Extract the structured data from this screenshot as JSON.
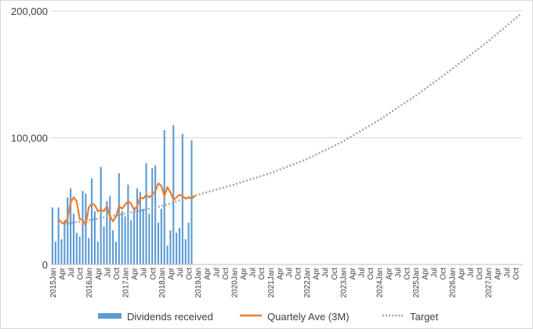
{
  "chart_data": {
    "type": "bar",
    "title": "",
    "xlabel": "",
    "ylabel": "",
    "ylim": [
      0,
      200000
    ],
    "yticks": [
      0,
      100000,
      200000
    ],
    "ytick_labels": [
      "0",
      "100,000",
      "200,000"
    ],
    "grid": true,
    "legend_position": "bottom",
    "x_start": "2015-01",
    "x_end": "2027-12",
    "x_tick_labels": [
      "2015Jan",
      "Apr",
      "Jul",
      "Oct",
      "2016Jan",
      "Apr",
      "Jul",
      "Oct",
      "2017Jan",
      "Apr",
      "Jul",
      "Oct",
      "2018Jan",
      "Apr",
      "Jul",
      "Oct",
      "2019Jan",
      "Apr",
      "Jul",
      "Oct",
      "2020Jan",
      "Apr",
      "Jul",
      "Oct",
      "2021Jan",
      "Apr",
      "Jul",
      "Oct",
      "2022Jan",
      "Apr",
      "Jul",
      "Oct",
      "2023Jan",
      "Apr",
      "Jul",
      "Oct",
      "2024Jan",
      "Apr",
      "Jul",
      "Oct",
      "2025Jan",
      "Apr",
      "Jul",
      "Oct",
      "2026Jan",
      "Apr",
      "Jul",
      "Oct",
      "2027Jan",
      "Apr",
      "Jul",
      "Oct"
    ],
    "series": [
      {
        "name": "Dividends received",
        "kind": "bar",
        "color": "#5b9bd5",
        "x": [
          "2015-01",
          "2015-02",
          "2015-03",
          "2015-04",
          "2015-05",
          "2015-06",
          "2015-07",
          "2015-08",
          "2015-09",
          "2015-10",
          "2015-11",
          "2015-12",
          "2016-01",
          "2016-02",
          "2016-03",
          "2016-04",
          "2016-05",
          "2016-06",
          "2016-07",
          "2016-08",
          "2016-09",
          "2016-10",
          "2016-11",
          "2016-12",
          "2017-01",
          "2017-02",
          "2017-03",
          "2017-04",
          "2017-05",
          "2017-06",
          "2017-07",
          "2017-08",
          "2017-09",
          "2017-10",
          "2017-11",
          "2017-12",
          "2018-01",
          "2018-02",
          "2018-03",
          "2018-04",
          "2018-05",
          "2018-06",
          "2018-07",
          "2018-08",
          "2018-09",
          "2018-10",
          "2018-11",
          "2018-12",
          "2019-01"
        ],
        "values": [
          45000,
          18000,
          45000,
          20000,
          35000,
          53000,
          60000,
          40000,
          25000,
          22000,
          58000,
          56000,
          21000,
          68000,
          42000,
          18000,
          77000,
          30000,
          50000,
          54000,
          27000,
          18000,
          72000,
          42000,
          38000,
          63000,
          35000,
          45000,
          60000,
          57000,
          44000,
          80000,
          40000,
          76000,
          78000,
          33000,
          44000,
          106000,
          15000,
          27000,
          110000,
          25000,
          29000,
          103000,
          20000,
          33000,
          98000,
          0,
          0
        ]
      },
      {
        "name": "Quartely Ave (3M)",
        "kind": "line",
        "color": "#ed7d31",
        "x": [
          "2015-03",
          "2015-04",
          "2015-05",
          "2015-06",
          "2015-07",
          "2015-08",
          "2015-09",
          "2015-10",
          "2015-11",
          "2015-12",
          "2016-01",
          "2016-02",
          "2016-03",
          "2016-04",
          "2016-05",
          "2016-06",
          "2016-07",
          "2016-08",
          "2016-09",
          "2016-10",
          "2016-11",
          "2016-12",
          "2017-01",
          "2017-02",
          "2017-03",
          "2017-04",
          "2017-05",
          "2017-06",
          "2017-07",
          "2017-08",
          "2017-09",
          "2017-10",
          "2017-11",
          "2017-12",
          "2018-01",
          "2018-02",
          "2018-03",
          "2018-04",
          "2018-05",
          "2018-06",
          "2018-07",
          "2018-08",
          "2018-09",
          "2018-10",
          "2018-11",
          "2018-12"
        ],
        "values": [
          36000,
          33000,
          32000,
          36000,
          49000,
          53000,
          50000,
          36000,
          35000,
          31000,
          45000,
          48000,
          47000,
          42000,
          43000,
          42000,
          46000,
          38000,
          34000,
          38000,
          46000,
          44000,
          47000,
          50000,
          48000,
          43000,
          46000,
          53000,
          52000,
          55000,
          53000,
          55000,
          58000,
          64000,
          62000,
          54000,
          61000,
          57000,
          51000,
          53000,
          55000,
          54000,
          52000,
          53000,
          52000,
          54000
        ]
      },
      {
        "name": "Target",
        "kind": "line",
        "style": "dotted",
        "color": "#a5a5a5",
        "x": [
          "2015-05",
          "2016-01",
          "2017-01",
          "2018-01",
          "2019-01",
          "2020-01",
          "2021-01",
          "2022-01",
          "2023-01",
          "2024-01",
          "2025-01",
          "2026-01",
          "2027-01",
          "2027-12"
        ],
        "values": [
          32000,
          35000,
          40000,
          46000,
          55000,
          63000,
          72000,
          83000,
          97000,
          114000,
          133000,
          154000,
          176000,
          198000
        ]
      }
    ]
  },
  "legend": {
    "items": [
      {
        "label": "Dividends received",
        "color": "#5b9bd5"
      },
      {
        "label": "Quartely Ave (3M)",
        "color": "#ed7d31"
      },
      {
        "label": "Target",
        "color": "#a5a5a5"
      }
    ]
  }
}
